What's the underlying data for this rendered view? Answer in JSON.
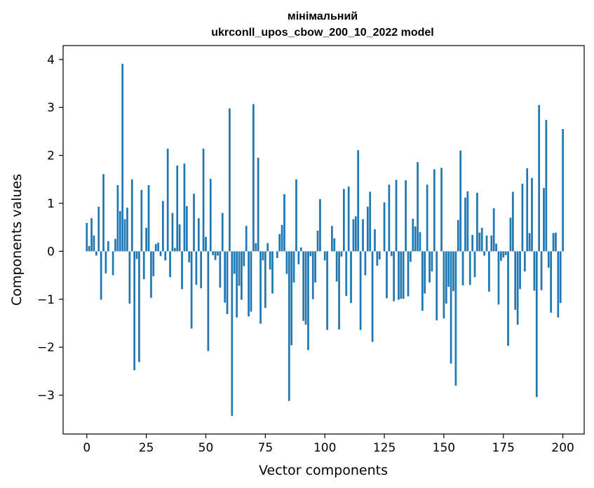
{
  "chart_data": {
    "type": "bar",
    "title_lines": [
      "мінімальний",
      "ukrconll_upos_cbow_200_10_2022 model"
    ],
    "xlabel": "Vector components",
    "ylabel": "Components values",
    "xlim": [
      -9.95,
      208.95
    ],
    "ylim": [
      -3.81,
      4.29
    ],
    "xticks": [
      0,
      25,
      50,
      75,
      100,
      125,
      150,
      175,
      200
    ],
    "yticks": [
      -3,
      -2,
      -1,
      0,
      1,
      2,
      3,
      4
    ],
    "ytick_labels": [
      "−3",
      "−2",
      "−1",
      "0",
      "1",
      "2",
      "3",
      "4"
    ],
    "bar_color": "#1f77b4",
    "grid": false,
    "values": [
      0.59,
      0.11,
      0.69,
      0.33,
      -0.09,
      0.93,
      -1.01,
      1.61,
      -0.46,
      0.21,
      0.0,
      -0.5,
      0.26,
      1.38,
      0.84,
      3.91,
      0.67,
      0.91,
      -1.09,
      1.5,
      -2.48,
      -0.16,
      -2.31,
      1.28,
      -0.58,
      0.49,
      1.38,
      -0.97,
      -0.52,
      0.15,
      0.18,
      -0.1,
      1.05,
      -0.19,
      2.14,
      -0.54,
      0.8,
      0.07,
      1.79,
      0.56,
      -0.79,
      1.83,
      0.94,
      -0.23,
      -1.61,
      1.2,
      -0.7,
      0.69,
      -0.77,
      2.14,
      0.3,
      -2.08,
      1.51,
      -0.08,
      -0.18,
      -0.09,
      -0.76,
      0.8,
      -1.07,
      -1.31,
      2.98,
      -3.43,
      -0.47,
      -1.38,
      -0.72,
      -1.01,
      -0.31,
      0.53,
      -1.36,
      -1.26,
      3.07,
      0.17,
      1.95,
      -1.51,
      -0.19,
      -1.18,
      0.17,
      -0.38,
      -0.88,
      0.0,
      -0.14,
      0.36,
      0.55,
      1.19,
      -0.47,
      -3.12,
      -1.96,
      -0.65,
      1.5,
      -0.27,
      0.08,
      -1.45,
      -1.53,
      -2.06,
      -0.1,
      -1.0,
      -0.65,
      0.43,
      1.09,
      0.0,
      -0.19,
      -1.64,
      0.0,
      0.53,
      0.27,
      -0.63,
      -1.63,
      -0.11,
      1.3,
      -0.93,
      1.35,
      -1.08,
      0.67,
      0.73,
      2.11,
      -1.64,
      0.67,
      -0.5,
      0.93,
      1.24,
      -1.89,
      0.46,
      -0.3,
      -0.17,
      0.0,
      1.02,
      -0.98,
      1.39,
      -0.1,
      -1.04,
      1.49,
      -1.01,
      -0.99,
      -0.99,
      1.48,
      -0.94,
      -0.22,
      0.68,
      0.52,
      1.86,
      0.4,
      -1.24,
      -0.88,
      1.39,
      -0.65,
      -0.42,
      1.71,
      -1.44,
      0.0,
      1.74,
      -1.4,
      -1.09,
      -0.74,
      -2.34,
      -0.83,
      -2.8,
      0.65,
      2.1,
      -0.71,
      1.12,
      1.25,
      -0.7,
      0.34,
      -0.54,
      1.22,
      0.39,
      0.49,
      -0.09,
      0.33,
      -0.84,
      0.33,
      0.9,
      0.16,
      -1.11,
      -0.2,
      -0.13,
      -0.08,
      -1.97,
      0.7,
      1.24,
      -1.22,
      -1.53,
      -0.79,
      1.41,
      -0.42,
      1.73,
      0.38,
      1.53,
      -0.82,
      -3.04,
      3.05,
      -0.81,
      1.32,
      2.74,
      -0.34,
      -1.28,
      0.38,
      0.39,
      -1.38,
      -1.08,
      2.55
    ]
  }
}
